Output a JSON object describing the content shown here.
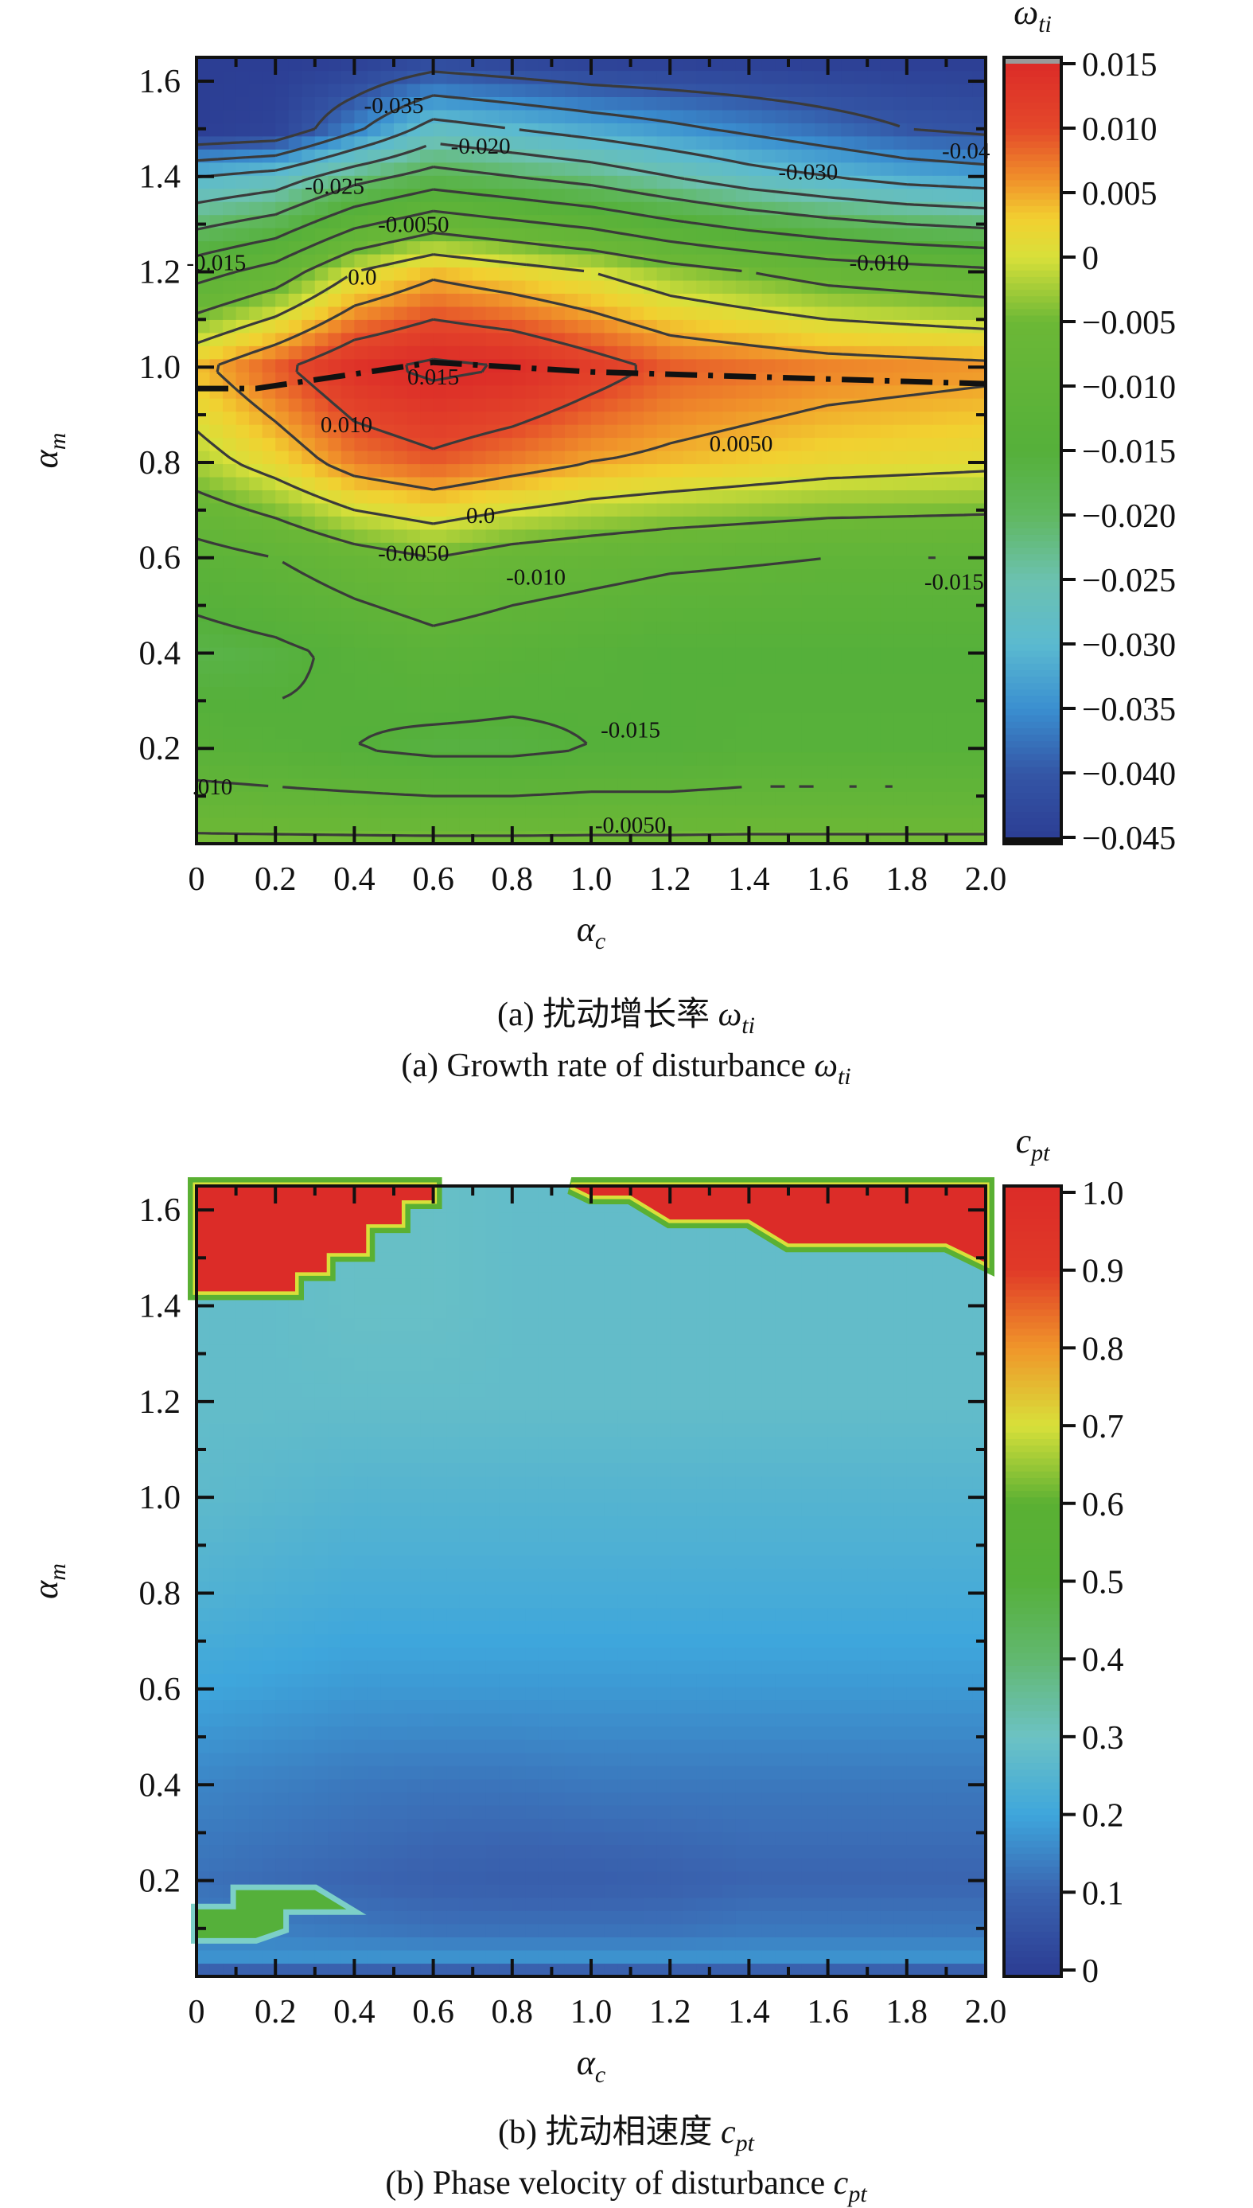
{
  "chart_data": [
    {
      "type": "heatmap",
      "subtype": "filled-contour",
      "xlabel": {
        "symbol": "α",
        "sub": "c"
      },
      "ylabel": {
        "symbol": "α",
        "sub": "m"
      },
      "xlim": [
        0,
        2.0
      ],
      "ylim": [
        0,
        1.65
      ],
      "x_ticks": [
        "0",
        "0.2",
        "0.4",
        "0.6",
        "0.8",
        "1.0",
        "1.2",
        "1.4",
        "1.6",
        "1.8",
        "2.0"
      ],
      "y_ticks": [
        "0.2",
        "0.4",
        "0.6",
        "0.8",
        "1.0",
        "1.2",
        "1.4",
        "1.6"
      ],
      "colorbar": {
        "title": {
          "symbol": "ω",
          "sub": "ti"
        },
        "range": [
          -0.045,
          0.015
        ],
        "ticks": [
          "0.015",
          "0.010",
          "0.005",
          "0",
          "−0.005",
          "−0.010",
          "−0.015",
          "−0.020",
          "−0.025",
          "−0.030",
          "−0.035",
          "−0.040",
          "−0.045"
        ],
        "tick_values": [
          0.015,
          0.01,
          0.005,
          0,
          -0.005,
          -0.01,
          -0.015,
          -0.02,
          -0.025,
          -0.03,
          -0.035,
          -0.04,
          -0.045
        ]
      },
      "colormap": [
        [
          -0.045,
          "#2c3e94"
        ],
        [
          -0.04,
          "#3456a6"
        ],
        [
          -0.035,
          "#3a8fd0"
        ],
        [
          -0.03,
          "#5bbad0"
        ],
        [
          -0.025,
          "#6cc1b0"
        ],
        [
          -0.02,
          "#60b860"
        ],
        [
          -0.015,
          "#55b03a"
        ],
        [
          -0.005,
          "#6cb836"
        ],
        [
          0,
          "#d8e03a"
        ],
        [
          0.003,
          "#f2d030"
        ],
        [
          0.006,
          "#f0922a"
        ],
        [
          0.01,
          "#e4482a"
        ],
        [
          0.015,
          "#dc2c28"
        ]
      ],
      "x": [
        0,
        0.2,
        0.4,
        0.6,
        0.8,
        1.0,
        1.2,
        1.4,
        1.6,
        1.8,
        2.0
      ],
      "y": [
        0,
        0.2,
        0.4,
        0.6,
        0.8,
        1.0,
        1.2,
        1.4,
        1.5,
        1.65
      ],
      "z": [
        [
          -0.004,
          -0.004,
          -0.004,
          -0.004,
          -0.004,
          -0.004,
          -0.004,
          -0.004,
          -0.004,
          -0.004,
          -0.004
        ],
        [
          -0.013,
          -0.014,
          -0.015,
          -0.016,
          -0.016,
          -0.015,
          -0.015,
          -0.014,
          -0.014,
          -0.014,
          -0.014
        ],
        [
          -0.017,
          -0.016,
          -0.014,
          -0.012,
          -0.013,
          -0.014,
          -0.015,
          -0.015,
          -0.015,
          -0.015,
          -0.015
        ],
        [
          -0.012,
          -0.01,
          -0.007,
          -0.005,
          -0.007,
          -0.008,
          -0.009,
          -0.0095,
          -0.01,
          -0.01,
          -0.01
        ],
        [
          -0.002,
          0.002,
          0.007,
          0.009,
          0.007,
          0.005,
          0.004,
          0.003,
          0.002,
          0.0015,
          0.001
        ],
        [
          0.004,
          0.009,
          0.014,
          0.016,
          0.015,
          0.012,
          0.009,
          0.008,
          0.007,
          0.0065,
          0.006
        ],
        [
          -0.012,
          -0.008,
          0.0,
          0.004,
          0.002,
          0.0,
          -0.003,
          -0.005,
          -0.007,
          -0.008,
          -0.009
        ],
        [
          -0.03,
          -0.028,
          -0.022,
          -0.018,
          -0.02,
          -0.022,
          -0.025,
          -0.028,
          -0.03,
          -0.032,
          -0.033
        ],
        [
          -0.045,
          -0.044,
          -0.036,
          -0.028,
          -0.03,
          -0.032,
          -0.034,
          -0.036,
          -0.038,
          -0.04,
          -0.041
        ],
        [
          -0.045,
          -0.045,
          -0.045,
          -0.043,
          -0.044,
          -0.045,
          -0.045,
          -0.045,
          -0.045,
          -0.045,
          -0.045
        ]
      ],
      "contour_levels": [
        -0.04,
        -0.035,
        -0.03,
        -0.025,
        -0.02,
        -0.015,
        -0.01,
        -0.005,
        0.0,
        0.005,
        0.01,
        0.015
      ],
      "contour_labels": [
        "-0.035",
        "-0.020",
        "-0.025",
        "-0.0050",
        "-0.015",
        "0.0",
        "-0.030",
        "-0.04",
        "-0.010",
        "0.015",
        "0.010",
        "0.0050",
        "0.0",
        "-0.0050",
        "-0.010",
        "-0.015",
        "-0.015",
        ".010",
        "-0.0050"
      ],
      "dashdot_line": [
        [
          0,
          0.955
        ],
        [
          0.15,
          0.955
        ],
        [
          0.6,
          1.01
        ],
        [
          1.0,
          0.99
        ],
        [
          2.0,
          0.965
        ]
      ],
      "caption_cn": {
        "text": "(a) 扰动增长率 ",
        "symbol": "ω",
        "sub": "ti"
      },
      "caption_en": {
        "text": "(a) Growth rate of disturbance ",
        "symbol": "ω",
        "sub": "ti"
      }
    },
    {
      "type": "heatmap",
      "subtype": "filled-contour",
      "xlabel": {
        "symbol": "α",
        "sub": "c"
      },
      "ylabel": {
        "symbol": "α",
        "sub": "m"
      },
      "xlim": [
        0,
        2.0
      ],
      "ylim": [
        0,
        1.65
      ],
      "x_ticks": [
        "0",
        "0.2",
        "0.4",
        "0.6",
        "0.8",
        "1.0",
        "1.2",
        "1.4",
        "1.6",
        "1.8",
        "2.0"
      ],
      "y_ticks": [
        "0.2",
        "0.4",
        "0.6",
        "0.8",
        "1.0",
        "1.2",
        "1.4",
        "1.6"
      ],
      "colorbar": {
        "title": {
          "symbol": "c",
          "sub": "pt"
        },
        "range": [
          0,
          1.0
        ],
        "ticks": [
          "1.0",
          "0.9",
          "0.8",
          "0.7",
          "0.6",
          "0.5",
          "0.4",
          "0.3",
          "0.2",
          "0.1",
          "0"
        ],
        "tick_values": [
          1.0,
          0.9,
          0.8,
          0.7,
          0.6,
          0.5,
          0.4,
          0.3,
          0.2,
          0.1,
          0
        ]
      },
      "colormap": [
        [
          0,
          "#2c3e94"
        ],
        [
          0.1,
          "#3a64b0"
        ],
        [
          0.2,
          "#3ea6dc"
        ],
        [
          0.3,
          "#6cc2c4"
        ],
        [
          0.4,
          "#62b870"
        ],
        [
          0.5,
          "#55b03a"
        ],
        [
          0.6,
          "#5ab033"
        ],
        [
          0.7,
          "#d8e03a"
        ],
        [
          0.8,
          "#f0962a"
        ],
        [
          0.9,
          "#e03a28"
        ],
        [
          1.0,
          "#dc2c28"
        ]
      ],
      "x": [
        0,
        0.2,
        0.4,
        0.6,
        0.8,
        1.0,
        1.2,
        1.4,
        1.6,
        1.8,
        2.0
      ],
      "y": [
        0,
        0.04,
        0.1,
        0.2,
        0.4,
        0.6,
        0.8,
        1.0,
        1.2,
        1.4,
        1.65
      ],
      "z": [
        [
          0.05,
          0.05,
          0.05,
          0.05,
          0.05,
          0.05,
          0.05,
          0.05,
          0.05,
          0.05,
          0.05
        ],
        [
          0.17,
          0.17,
          0.17,
          0.17,
          0.17,
          0.17,
          0.17,
          0.17,
          0.17,
          0.17,
          0.17
        ],
        [
          0.14,
          0.14,
          0.13,
          0.12,
          0.12,
          0.12,
          0.12,
          0.13,
          0.13,
          0.13,
          0.13
        ],
        [
          0.12,
          0.11,
          0.1,
          0.09,
          0.085,
          0.085,
          0.09,
          0.1,
          0.1,
          0.1,
          0.1
        ],
        [
          0.15,
          0.14,
          0.13,
          0.125,
          0.125,
          0.13,
          0.13,
          0.13,
          0.13,
          0.13,
          0.13
        ],
        [
          0.2,
          0.19,
          0.18,
          0.18,
          0.18,
          0.18,
          0.18,
          0.18,
          0.18,
          0.18,
          0.18
        ],
        [
          0.24,
          0.23,
          0.22,
          0.22,
          0.22,
          0.22,
          0.22,
          0.22,
          0.22,
          0.22,
          0.22
        ],
        [
          0.27,
          0.26,
          0.25,
          0.25,
          0.25,
          0.25,
          0.25,
          0.25,
          0.25,
          0.25,
          0.25
        ],
        [
          0.28,
          0.28,
          0.28,
          0.28,
          0.28,
          0.28,
          0.28,
          0.28,
          0.28,
          0.28,
          0.28
        ],
        [
          0.28,
          0.28,
          0.29,
          0.29,
          0.28,
          0.28,
          0.28,
          0.28,
          0.28,
          0.28,
          0.28
        ],
        [
          0.28,
          0.28,
          0.29,
          0.29,
          0.28,
          0.28,
          0.28,
          0.28,
          0.28,
          0.28,
          0.28
        ]
      ],
      "high_regions": {
        "value": 1.0,
        "polygons": [
          [
            [
              0,
              1.65
            ],
            [
              0,
              1.43
            ],
            [
              0.25,
              1.43
            ],
            [
              0.25,
              1.47
            ],
            [
              0.33,
              1.47
            ],
            [
              0.33,
              1.51
            ],
            [
              0.43,
              1.51
            ],
            [
              0.43,
              1.57
            ],
            [
              0.52,
              1.57
            ],
            [
              0.52,
              1.62
            ],
            [
              0.6,
              1.62
            ],
            [
              0.6,
              1.65
            ]
          ],
          [
            [
              0.95,
              1.65
            ],
            [
              1.0,
              1.63
            ],
            [
              1.1,
              1.63
            ],
            [
              1.2,
              1.58
            ],
            [
              1.4,
              1.58
            ],
            [
              1.5,
              1.53
            ],
            [
              1.9,
              1.53
            ],
            [
              2.0,
              1.49
            ],
            [
              2.0,
              1.65
            ]
          ]
        ]
      },
      "mid_regions": {
        "value": 0.5,
        "polygons": [
          [
            [
              0,
              0.08
            ],
            [
              0,
              0.14
            ],
            [
              0.1,
              0.14
            ],
            [
              0.1,
              0.18
            ],
            [
              0.3,
              0.18
            ],
            [
              0.38,
              0.14
            ],
            [
              0.22,
              0.14
            ],
            [
              0.22,
              0.1
            ],
            [
              0.15,
              0.08
            ]
          ]
        ]
      },
      "caption_cn": {
        "text": "(b) 扰动相速度 ",
        "symbol": "c",
        "sub": "pt"
      },
      "caption_en": {
        "text": "(b) Phase velocity of disturbance ",
        "symbol": "c",
        "sub": "pt"
      }
    }
  ]
}
